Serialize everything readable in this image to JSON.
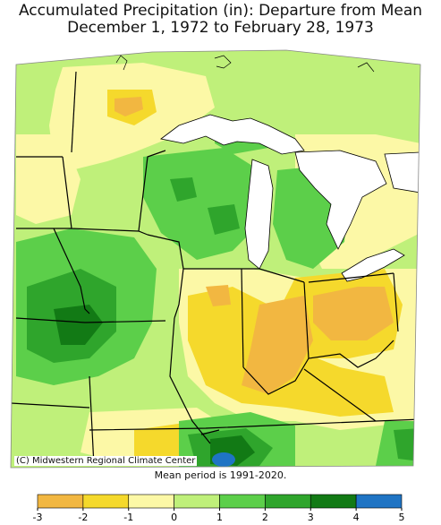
{
  "title_line1": "Accumulated Precipitation (in): Departure from Mean",
  "title_line2": "December 1, 1972 to February 28, 1973",
  "mean_note": "Mean period is 1991-2020.",
  "credit": "(C) Midwestern Regional Climate Center",
  "legend": {
    "ticks": [
      "-3",
      "-2",
      "-1",
      "0",
      "1",
      "2",
      "3",
      "4",
      "5"
    ],
    "colors": [
      "#f2b741",
      "#f5d92c",
      "#fcf8a6",
      "#bff07a",
      "#5ccf4a",
      "#2fa52c",
      "#127a15",
      "#1f74c4"
    ]
  },
  "colors": {
    "water": "#ffffff",
    "border": "#000000",
    "base": "#bff07a"
  }
}
